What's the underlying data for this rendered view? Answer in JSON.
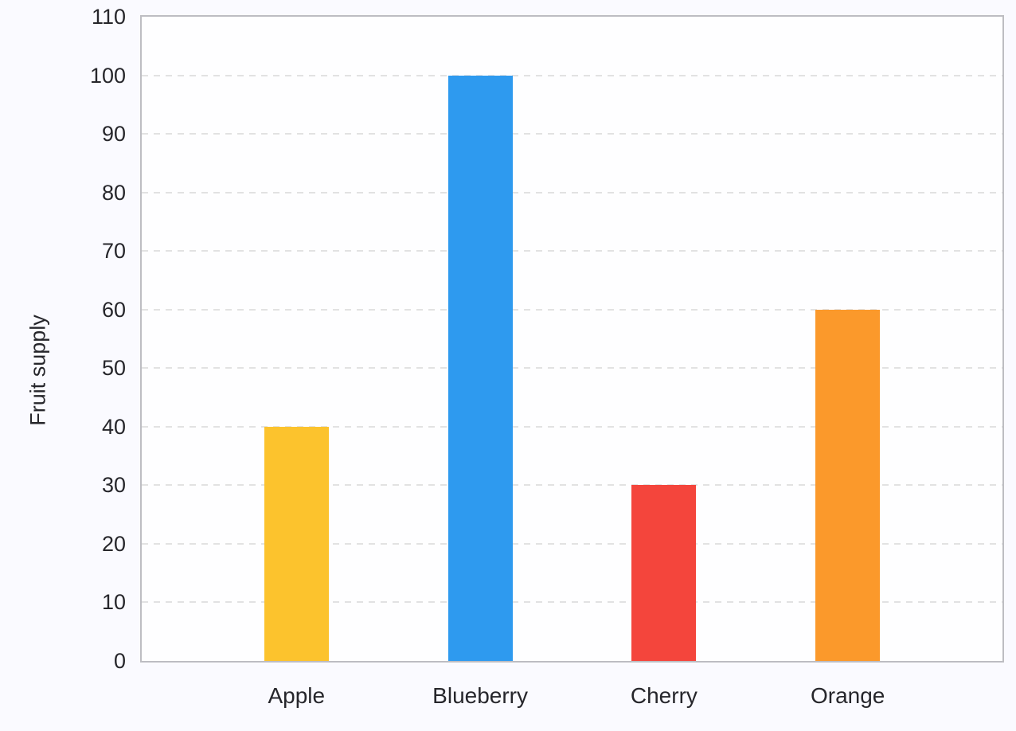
{
  "chart_data": {
    "type": "bar",
    "title": "",
    "categories": [
      "Apple",
      "Blueberry",
      "Cherry",
      "Orange"
    ],
    "values": [
      40,
      100,
      30,
      60
    ],
    "bar_colors": [
      "#FCC32D",
      "#2E9AEF",
      "#F4453C",
      "#FB992B"
    ],
    "xlabel": "",
    "ylabel": "Fruit supply",
    "ylim": [
      0,
      110
    ],
    "yticks": [
      0,
      10,
      20,
      30,
      40,
      50,
      60,
      70,
      80,
      90,
      100,
      110
    ],
    "grid": "horizontal-dashed",
    "legend_position": "none"
  },
  "colors": {
    "background": "#FAFAFF",
    "plot_background": "#FEFEFF",
    "axis_border": "#BDBDC2",
    "gridline": "#E2E2E2",
    "text": "#26262B"
  }
}
